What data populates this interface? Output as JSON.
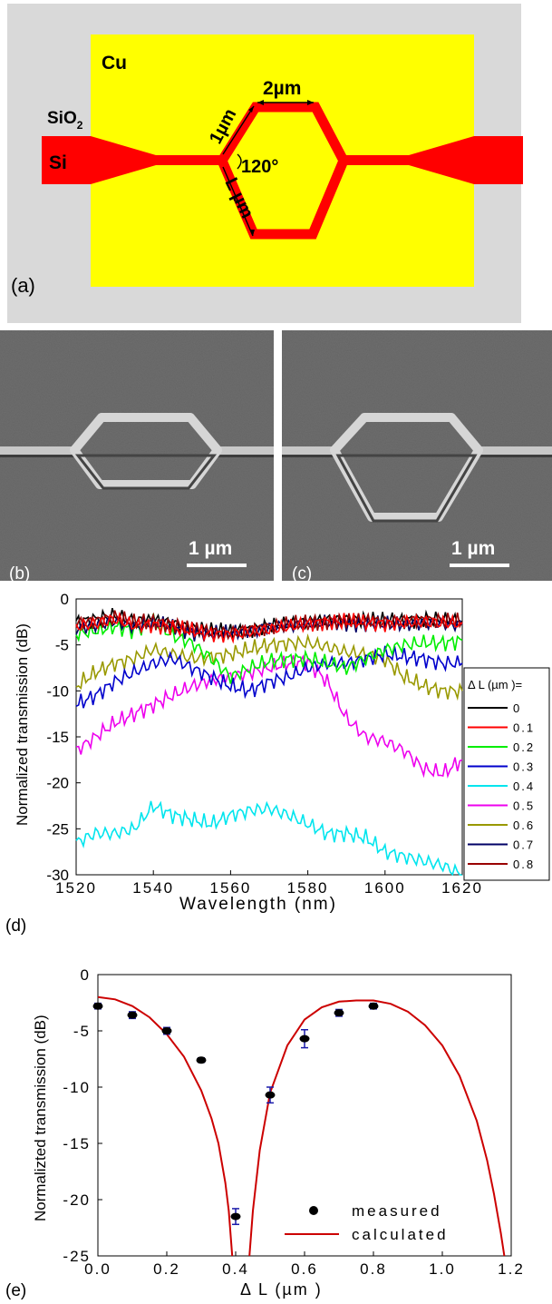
{
  "panel_a": {
    "label": "(a)",
    "materials": {
      "cu": "Cu",
      "sio2": "SiO",
      "sio2_sub": "2",
      "si": "Si"
    },
    "dims": {
      "top": "2µm",
      "side": "1µm",
      "bottom": "L µm",
      "angle": "120°"
    },
    "colors": {
      "cladding": "#d9d9d9",
      "copper": "#ffff00",
      "silicon": "#ff0000"
    }
  },
  "panel_b": {
    "label": "(b)",
    "scale": "1 µm"
  },
  "panel_c": {
    "label": "(c)",
    "scale": "1 µm"
  },
  "panel_d": {
    "label": "(d)",
    "legend_title": "Δ L  (µm )=",
    "chart_data": {
      "type": "line",
      "xlabel": "Wavelength (nm)",
      "ylabel": "Normalized transmission (dB)",
      "xlim": [
        1520,
        1620
      ],
      "ylim": [
        -30,
        0
      ],
      "xticks": [
        "1520",
        "1540",
        "1560",
        "1580",
        "1600",
        "1620"
      ],
      "yticks": [
        "0",
        "-5",
        "-10",
        "-15",
        "-20",
        "-25",
        "-30"
      ],
      "x": [
        1520,
        1525,
        1530,
        1535,
        1540,
        1545,
        1550,
        1555,
        1560,
        1565,
        1570,
        1575,
        1580,
        1585,
        1590,
        1595,
        1600,
        1605,
        1610,
        1615,
        1620
      ],
      "series": [
        {
          "name": "0",
          "color": "#000000",
          "values": [
            -2.5,
            -2.2,
            -1.8,
            -2.4,
            -2.3,
            -2.7,
            -3.1,
            -3.5,
            -3.6,
            -3.3,
            -3.0,
            -2.7,
            -2.5,
            -2.3,
            -2.2,
            -2.3,
            -2.4,
            -2.3,
            -2.2,
            -2.3,
            -2.4
          ]
        },
        {
          "name": "0.1",
          "color": "#ff0000",
          "values": [
            -3.0,
            -2.7,
            -2.2,
            -2.9,
            -2.8,
            -3.1,
            -3.5,
            -3.8,
            -3.9,
            -3.6,
            -3.3,
            -3.0,
            -2.7,
            -2.5,
            -2.5,
            -2.6,
            -2.7,
            -2.6,
            -2.5,
            -2.6,
            -2.7
          ]
        },
        {
          "name": "0.2",
          "color": "#00ee00",
          "values": [
            -3.8,
            -3.5,
            -3.0,
            -3.4,
            -2.5,
            -4.0,
            -4.8,
            -6.5,
            -8.5,
            -7.5,
            -6.8,
            -6.5,
            -6.5,
            -7.0,
            -7.5,
            -6.5,
            -5.5,
            -5.0,
            -4.8,
            -4.8,
            -4.5
          ]
        },
        {
          "name": "0.3",
          "color": "#0000cc",
          "values": [
            -11.5,
            -10.5,
            -9.0,
            -8.0,
            -7.0,
            -6.5,
            -7.5,
            -8.5,
            -9.5,
            -10.0,
            -9.0,
            -8.5,
            -7.5,
            -7.0,
            -7.0,
            -6.5,
            -6.0,
            -6.3,
            -6.5,
            -7.0,
            -7.0
          ]
        },
        {
          "name": "0.4",
          "color": "#00e5ee",
          "values": [
            -26.5,
            -25.5,
            -25.5,
            -25.0,
            -22.5,
            -23.5,
            -24.0,
            -24.5,
            -23.5,
            -23.0,
            -22.8,
            -23.5,
            -24.5,
            -25.5,
            -25.5,
            -26.0,
            -27.5,
            -28.0,
            -28.5,
            -29.0,
            -30.0
          ]
        },
        {
          "name": "0.5",
          "color": "#ee00ee",
          "values": [
            -16.5,
            -15.0,
            -13.5,
            -12.5,
            -11.5,
            -10.5,
            -9.5,
            -8.8,
            -8.5,
            -8.0,
            -7.5,
            -7.0,
            -6.8,
            -9.0,
            -13.0,
            -15.0,
            -15.5,
            -16.5,
            -18.5,
            -19.0,
            -17.5
          ]
        },
        {
          "name": "0.6",
          "color": "#999900",
          "values": [
            -9.5,
            -8.0,
            -7.0,
            -6.5,
            -5.5,
            -6.0,
            -6.5,
            -6.3,
            -6.0,
            -5.5,
            -5.0,
            -4.8,
            -4.8,
            -5.2,
            -5.8,
            -6.0,
            -6.5,
            -8.5,
            -9.5,
            -10.0,
            -10.0
          ]
        },
        {
          "name": "0.7",
          "color": "#000066",
          "values": [
            -3.2,
            -2.8,
            -2.4,
            -3.0,
            -2.6,
            -3.0,
            -3.6,
            -3.8,
            -3.7,
            -3.4,
            -3.1,
            -2.9,
            -2.7,
            -2.6,
            -2.6,
            -2.7,
            -2.8,
            -2.7,
            -2.6,
            -2.7,
            -2.8
          ]
        },
        {
          "name": "0.8",
          "color": "#990000",
          "values": [
            -2.7,
            -2.4,
            -2.0,
            -2.6,
            -2.4,
            -2.8,
            -3.3,
            -3.6,
            -3.7,
            -3.4,
            -3.1,
            -2.8,
            -2.6,
            -2.4,
            -2.4,
            -2.4,
            -2.5,
            -2.4,
            -2.3,
            -2.4,
            -2.5
          ]
        }
      ]
    }
  },
  "panel_e": {
    "label": "(e)",
    "chart_data": {
      "type": "scatter",
      "xlabel": "Δ L  (µm )",
      "ylabel": "Normalizted transmission (dB)",
      "xlim": [
        0,
        1.2
      ],
      "ylim": [
        -25,
        0
      ],
      "xticks": [
        "0.0",
        "0.2",
        "0.4",
        "0.6",
        "0.8",
        "1.0",
        "1.2"
      ],
      "yticks": [
        "0",
        "-5",
        "-10",
        "-15",
        "-20",
        "-25"
      ],
      "measured": {
        "name": "measured",
        "x": [
          0.0,
          0.1,
          0.2,
          0.3,
          0.4,
          0.5,
          0.6,
          0.7,
          0.8
        ],
        "y": [
          -2.8,
          -3.6,
          -5.0,
          -7.6,
          -21.5,
          -10.7,
          -5.7,
          -3.4,
          -2.8
        ],
        "err": [
          0.25,
          0.3,
          0.3,
          0.2,
          0.7,
          0.7,
          0.8,
          0.3,
          0.25
        ]
      },
      "calculated": {
        "name": "calculated",
        "color": "#cc0000",
        "x": [
          0.0,
          0.05,
          0.1,
          0.15,
          0.2,
          0.25,
          0.3,
          0.33,
          0.35,
          0.37,
          0.38,
          0.39,
          0.44,
          0.45,
          0.47,
          0.5,
          0.55,
          0.6,
          0.65,
          0.7,
          0.75,
          0.8,
          0.85,
          0.9,
          0.95,
          1.0,
          1.05,
          1.1,
          1.13,
          1.15,
          1.17,
          1.18
        ],
        "y": [
          -2.0,
          -2.2,
          -2.8,
          -3.8,
          -5.3,
          -7.3,
          -10.3,
          -12.8,
          -15.0,
          -18.5,
          -21.0,
          -25.0,
          -25.0,
          -21.0,
          -15.6,
          -10.5,
          -6.3,
          -4.0,
          -2.9,
          -2.4,
          -2.3,
          -2.3,
          -2.6,
          -3.3,
          -4.5,
          -6.3,
          -9.0,
          -13.0,
          -16.5,
          -19.5,
          -23.0,
          -25.0
        ]
      }
    }
  }
}
